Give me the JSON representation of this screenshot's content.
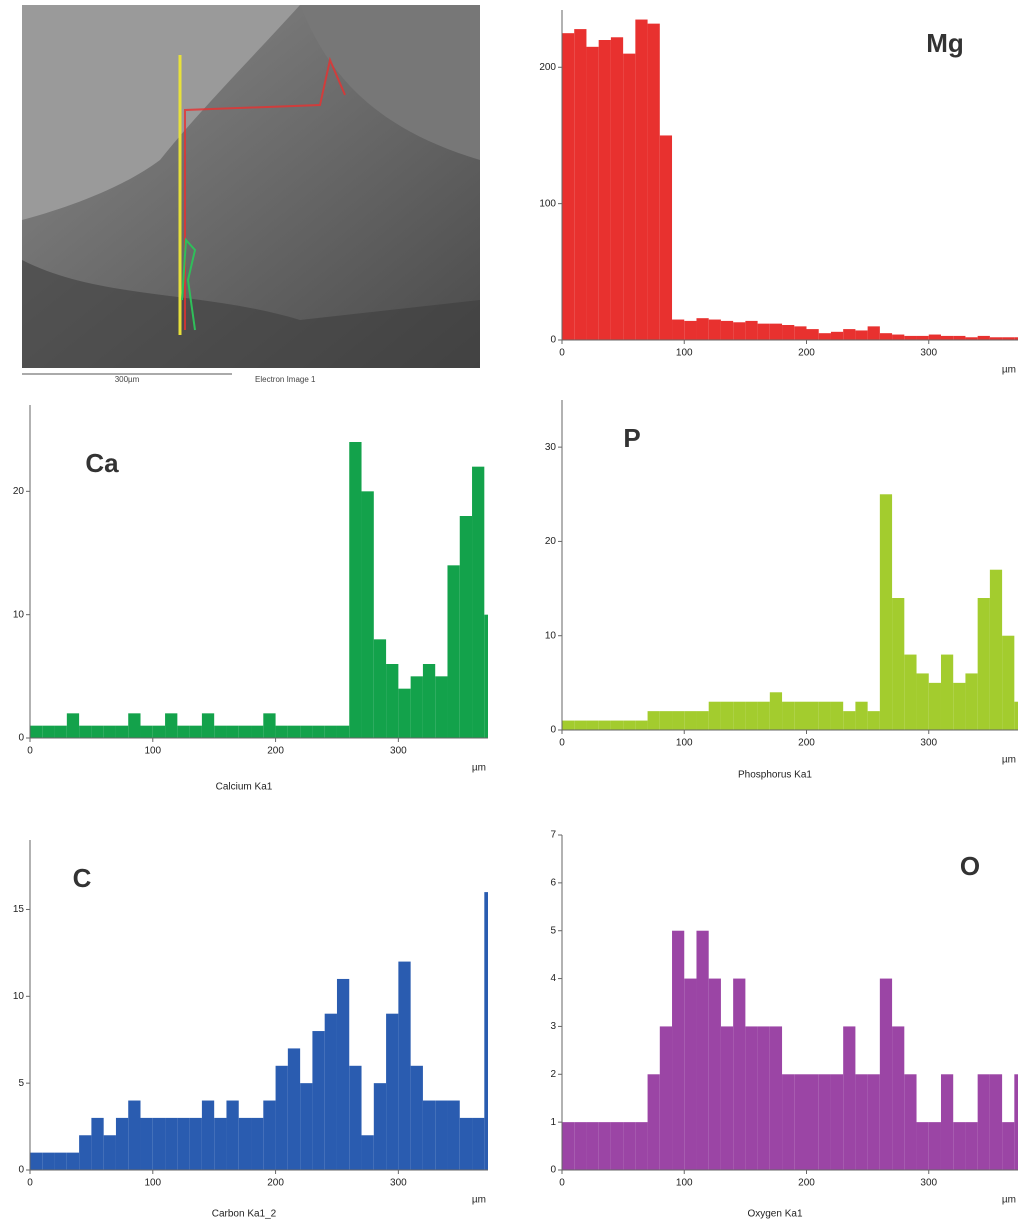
{
  "image": {
    "scale_label": "300µm",
    "caption": "Electron Image 1"
  },
  "chart_data": [
    {
      "type": "bar",
      "label": "Mg",
      "x_unit": "µm",
      "color": "#e8312f",
      "x": [
        0,
        10,
        20,
        30,
        40,
        50,
        60,
        70,
        80,
        90,
        100,
        110,
        120,
        130,
        140,
        150,
        160,
        170,
        180,
        190,
        200,
        210,
        220,
        230,
        240,
        250,
        260,
        270,
        280,
        290,
        300,
        310,
        320,
        330,
        340,
        350,
        360,
        370
      ],
      "values": [
        225,
        228,
        215,
        220,
        222,
        210,
        235,
        232,
        150,
        15,
        14,
        16,
        15,
        14,
        13,
        14,
        12,
        12,
        11,
        10,
        8,
        5,
        6,
        8,
        7,
        10,
        5,
        4,
        3,
        3,
        4,
        3,
        3,
        2,
        3,
        2,
        2,
        2
      ],
      "xlim": [
        0,
        373
      ],
      "ylim": [
        0,
        242
      ],
      "xticks": [
        0,
        100,
        200,
        300
      ],
      "yticks": [
        0,
        100,
        200
      ]
    },
    {
      "type": "bar",
      "label": "Ca",
      "x_unit": "µm",
      "signal": "Calcium Ka1",
      "color": "#13a24b",
      "x": [
        0,
        10,
        20,
        30,
        40,
        50,
        60,
        70,
        80,
        90,
        100,
        110,
        120,
        130,
        140,
        150,
        160,
        170,
        180,
        190,
        200,
        210,
        220,
        230,
        240,
        250,
        260,
        270,
        280,
        290,
        300,
        310,
        320,
        330,
        340,
        350,
        360,
        370
      ],
      "values": [
        1,
        1,
        1,
        2,
        1,
        1,
        1,
        1,
        2,
        1,
        1,
        2,
        1,
        1,
        2,
        1,
        1,
        1,
        1,
        2,
        1,
        1,
        1,
        1,
        1,
        1,
        24,
        20,
        8,
        6,
        4,
        5,
        6,
        5,
        14,
        18,
        22,
        10
      ],
      "xlim": [
        0,
        373
      ],
      "ylim": [
        0,
        27
      ],
      "xticks": [
        0,
        100,
        200,
        300
      ],
      "yticks": [
        0,
        10,
        20
      ]
    },
    {
      "type": "bar",
      "label": "P",
      "x_unit": "µm",
      "signal": "Phosphorus Ka1",
      "color": "#a3cc2e",
      "x": [
        0,
        10,
        20,
        30,
        40,
        50,
        60,
        70,
        80,
        90,
        100,
        110,
        120,
        130,
        140,
        150,
        160,
        170,
        180,
        190,
        200,
        210,
        220,
        230,
        240,
        250,
        260,
        270,
        280,
        290,
        300,
        310,
        320,
        330,
        340,
        350,
        360,
        370
      ],
      "values": [
        1,
        1,
        1,
        1,
        1,
        1,
        1,
        2,
        2,
        2,
        2,
        2,
        3,
        3,
        3,
        3,
        3,
        4,
        3,
        3,
        3,
        3,
        3,
        2,
        3,
        2,
        25,
        14,
        8,
        6,
        5,
        8,
        5,
        6,
        14,
        17,
        10,
        3
      ],
      "xlim": [
        0,
        373
      ],
      "ylim": [
        0,
        35
      ],
      "xticks": [
        0,
        100,
        200,
        300
      ],
      "yticks": [
        0,
        10,
        20,
        30
      ]
    },
    {
      "type": "bar",
      "label": "C",
      "x_unit": "µm",
      "signal": "Carbon Ka1_2",
      "color": "#2a5cb0",
      "x": [
        0,
        10,
        20,
        30,
        40,
        50,
        60,
        70,
        80,
        90,
        100,
        110,
        120,
        130,
        140,
        150,
        160,
        170,
        180,
        190,
        200,
        210,
        220,
        230,
        240,
        250,
        260,
        270,
        280,
        290,
        300,
        310,
        320,
        330,
        340,
        350,
        360,
        370
      ],
      "values": [
        1,
        1,
        1,
        1,
        2,
        3,
        2,
        3,
        4,
        3,
        3,
        3,
        3,
        3,
        4,
        3,
        4,
        3,
        3,
        4,
        6,
        7,
        5,
        8,
        9,
        11,
        6,
        2,
        5,
        9,
        12,
        6,
        4,
        4,
        4,
        3,
        3,
        16
      ],
      "xlim": [
        0,
        373
      ],
      "ylim": [
        0,
        19
      ],
      "xticks": [
        0,
        100,
        200,
        300
      ],
      "yticks": [
        0,
        5,
        10,
        15
      ]
    },
    {
      "type": "bar",
      "label": "O",
      "x_unit": "µm",
      "signal": "Oxygen Ka1",
      "color": "#9b45a5",
      "x": [
        0,
        10,
        20,
        30,
        40,
        50,
        60,
        70,
        80,
        90,
        100,
        110,
        120,
        130,
        140,
        150,
        160,
        170,
        180,
        190,
        200,
        210,
        220,
        230,
        240,
        250,
        260,
        270,
        280,
        290,
        300,
        310,
        320,
        330,
        340,
        350,
        360,
        370
      ],
      "values": [
        1,
        1,
        1,
        1,
        1,
        1,
        1,
        2,
        3,
        5,
        4,
        5,
        4,
        3,
        4,
        3,
        3,
        3,
        2,
        2,
        2,
        2,
        2,
        3,
        2,
        2,
        4,
        3,
        2,
        1,
        1,
        2,
        1,
        1,
        2,
        2,
        1,
        2
      ],
      "xlim": [
        0,
        373
      ],
      "ylim": [
        0,
        7
      ],
      "xticks": [
        0,
        100,
        200,
        300
      ],
      "yticks": [
        0,
        1,
        2,
        3,
        4,
        5,
        6,
        7
      ]
    }
  ]
}
